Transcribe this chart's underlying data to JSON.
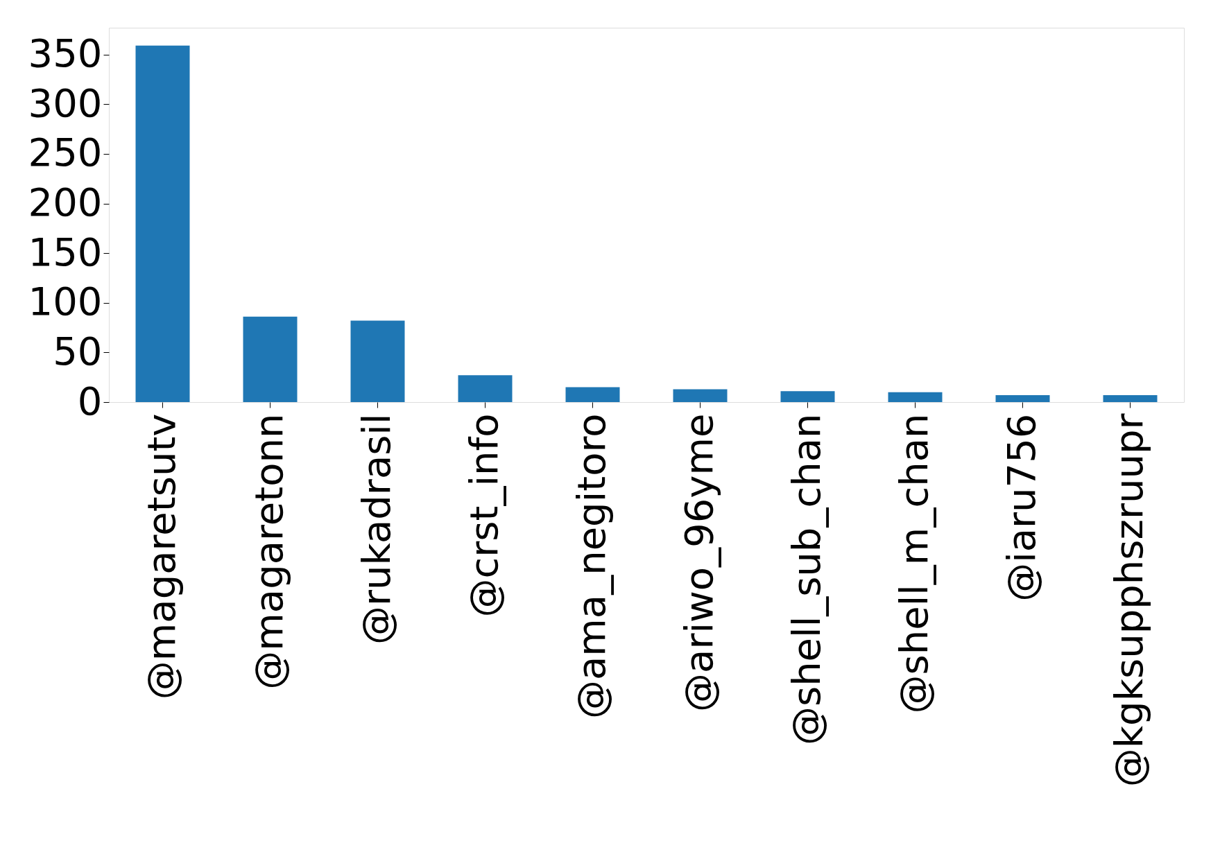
{
  "chart_data": {
    "type": "bar",
    "categories": [
      "@magaretsutv",
      "@magaretonn",
      "@rukadrasil",
      "@crst_info",
      "@ama_negitoro",
      "@ariwo_96yme",
      "@shell_sub_chan",
      "@shell_m_chan",
      "@iaru756",
      "@kgksupphszruupr"
    ],
    "values": [
      359,
      86,
      82,
      27,
      15,
      13,
      11,
      10,
      7,
      7
    ],
    "color": "#1f77b4",
    "ylim": [
      0,
      377
    ],
    "yticks": [
      0,
      50,
      100,
      150,
      200,
      250,
      300,
      350
    ],
    "grid": false
  }
}
